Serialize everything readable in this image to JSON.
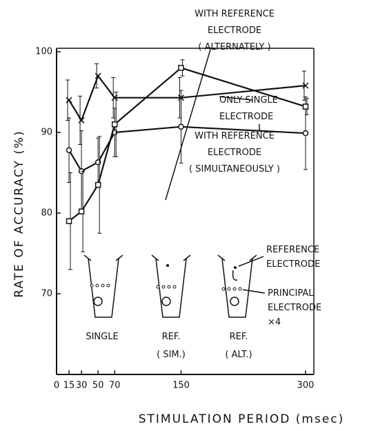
{
  "chart_data": {
    "type": "line",
    "x_label": "STIMULATION PERIOD   (msec)",
    "y_label": "RATE OF ACCURACY   (%)",
    "x": [
      15,
      30,
      50,
      70,
      150,
      300
    ],
    "xlim": [
      0,
      310
    ],
    "xticks": [
      0,
      15,
      30,
      50,
      70,
      150,
      300
    ],
    "ylim": [
      60,
      100
    ],
    "yticks": [
      70,
      80,
      90,
      100
    ],
    "series": [
      {
        "name": "ONLY SINGLE\nELECTRODE",
        "marker": "x",
        "color": "#111111",
        "values": [
          94,
          91.5,
          97,
          94.3,
          94.3,
          95.8
        ],
        "errors": [
          2.5,
          3,
          1.5,
          2.5,
          2.5,
          1.8
        ]
      },
      {
        "name": "WITH REFERENCE\nELECTRODE\n( SIMULTANEOUSLY )",
        "marker": "circle",
        "color": "#111111",
        "values": [
          87.8,
          85.2,
          86.3,
          90,
          90.7,
          89.9
        ],
        "errors": [
          4,
          5,
          3,
          3,
          4.5,
          4.5
        ]
      },
      {
        "name": "WITH REFERENCE\nELECTRODE\n( ALTERNATELY )",
        "marker": "square",
        "color": "#111111",
        "values": [
          79,
          80.2,
          83.5,
          91,
          98,
          93.2
        ],
        "errors": [
          6,
          5,
          6,
          4,
          1,
          1
        ]
      }
    ],
    "inset_labels": [
      "SINGLE",
      "REF.\n( SIM.)",
      "REF.\n( ALT.)"
    ],
    "annotations": [
      "REFERENCE\nELECTRODE",
      "PRINCIPAL\nELECTRODE\n×4"
    ]
  }
}
